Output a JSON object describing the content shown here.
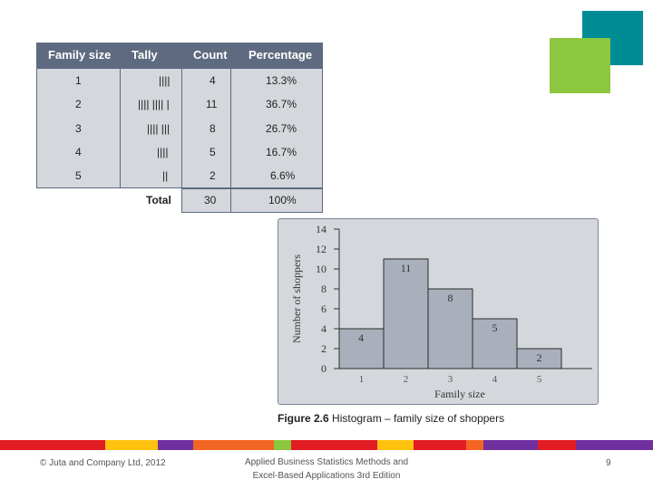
{
  "table": {
    "headers": [
      "Family size",
      "Tally",
      "Count",
      "Percentage"
    ],
    "rows": [
      [
        "1",
        "||||",
        "4",
        "13.3%"
      ],
      [
        "2",
        "|||| |||| |",
        "11",
        "36.7%"
      ],
      [
        "3",
        "|||| |||",
        "8",
        "26.7%"
      ],
      [
        "4",
        "||||",
        "5",
        "16.7%"
      ],
      [
        "5",
        "||",
        "2",
        "6.6%"
      ]
    ],
    "total_label": "Total",
    "total_count": "30",
    "total_percentage": "100%"
  },
  "chart_data": {
    "type": "bar",
    "categories": [
      "1",
      "2",
      "3",
      "4",
      "5"
    ],
    "values": [
      4,
      11,
      8,
      5,
      2
    ],
    "data_labels": [
      "4",
      "11",
      "8",
      "5",
      "2"
    ],
    "xlabel": "Family size",
    "ylabel": "Number of shoppers",
    "ylim": [
      0,
      14
    ],
    "yticks": [
      "0",
      "2",
      "4",
      "6",
      "8",
      "10",
      "12",
      "14"
    ],
    "grid": false,
    "colors": {
      "bar_fill": "#a9b0bb",
      "bar_stroke": "#2b2b2b",
      "panel": "#d4d7dc"
    }
  },
  "caption": {
    "figure_label": "Figure 2.6",
    "text": "Histogram – family size of shoppers"
  },
  "footer": {
    "copyright": "© Juta and Company Ltd, 2012",
    "book_line1": "Applied Business Statistics Methods and",
    "book_line2": "Excel-Based Applications 3rd Edition",
    "page_number": "9"
  },
  "colors": {
    "teal_square": "#008c95",
    "green_square": "#8dc63f",
    "table_header": "#5d6a7f",
    "table_body": "#d4d7dc",
    "strip": [
      "#e31b23",
      "#ffc20e",
      "#7030a0",
      "#f26522",
      "#f26522",
      "#8dc63f",
      "#e31b23",
      "#e31b23",
      "#ffc20e",
      "#e31b23",
      "#f26522",
      "#7030a0",
      "#e31b23",
      "#7030a0"
    ]
  }
}
